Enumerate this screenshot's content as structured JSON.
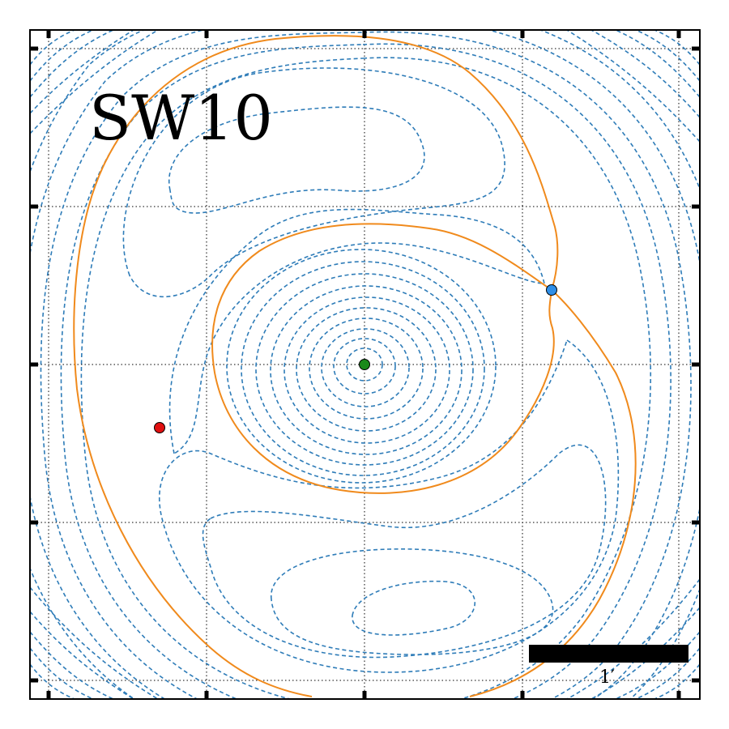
{
  "panel_label": "SW10",
  "scalebar_label": "1′",
  "colors": {
    "contour": "#2e7cb8",
    "separatrix": "#f08a1c",
    "center_point": "#1a8a1a",
    "saddle_point": "#2f8fe8",
    "red_point": "#e01010"
  },
  "markers": [
    {
      "name": "center-point",
      "color": "#1a8a1a"
    },
    {
      "name": "saddle-point",
      "color": "#2f8fe8"
    },
    {
      "name": "red-point",
      "color": "#e01010"
    }
  ]
}
